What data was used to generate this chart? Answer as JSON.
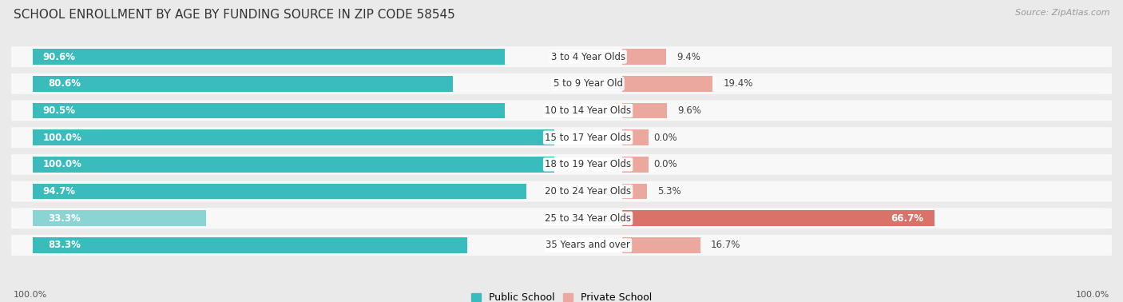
{
  "title": "SCHOOL ENROLLMENT BY AGE BY FUNDING SOURCE IN ZIP CODE 58545",
  "source": "Source: ZipAtlas.com",
  "categories": [
    "3 to 4 Year Olds",
    "5 to 9 Year Old",
    "10 to 14 Year Olds",
    "15 to 17 Year Olds",
    "18 to 19 Year Olds",
    "20 to 24 Year Olds",
    "25 to 34 Year Olds",
    "35 Years and over"
  ],
  "public_values": [
    90.6,
    80.6,
    90.5,
    100.0,
    100.0,
    94.7,
    33.3,
    83.3
  ],
  "private_values": [
    9.4,
    19.4,
    9.6,
    0.0,
    0.0,
    5.3,
    66.7,
    16.7
  ],
  "public_color": "#3BBCBC",
  "private_color_strong": "#D9736A",
  "private_color_light": "#EAA89F",
  "public_color_light": "#8AD4D4",
  "background_color": "#eaeaea",
  "bar_bg_color": "#f8f8f8",
  "legend_public": "Public School",
  "legend_private": "Private School",
  "axis_label_left": "100.0%",
  "axis_label_right": "100.0%",
  "title_fontsize": 11,
  "value_fontsize": 8.5,
  "category_fontsize": 8.5,
  "source_fontsize": 8
}
